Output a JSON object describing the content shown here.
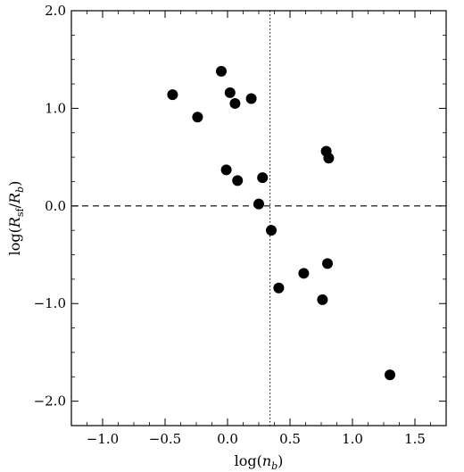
{
  "chart_data": {
    "type": "scatter",
    "xlabel": "log(n_b)",
    "ylabel": "log(R_sf/R_b)",
    "xlim": [
      -1.25,
      1.75
    ],
    "ylim": [
      -2.25,
      2.0
    ],
    "xticks": [
      -1.0,
      -0.5,
      0.0,
      0.5,
      1.0,
      1.5
    ],
    "xtick_labels": [
      "−1.0",
      "−0.5",
      "0.0",
      "0.5",
      "1.0",
      "1.5"
    ],
    "yticks": [
      -2.0,
      -1.0,
      0.0,
      1.0,
      2.0
    ],
    "ytick_labels": [
      "−2.0",
      "−1.0",
      "0.0",
      "1.0",
      "2.0"
    ],
    "reference_lines": {
      "horizontal_dashed_y": 0.0,
      "vertical_dotted_x": 0.34
    },
    "series": [
      {
        "color": "#000000",
        "points": [
          [
            -0.44,
            1.14
          ],
          [
            -0.24,
            0.91
          ],
          [
            -0.05,
            1.38
          ],
          [
            0.02,
            1.16
          ],
          [
            0.06,
            1.05
          ],
          [
            0.19,
            1.1
          ],
          [
            -0.01,
            0.37
          ],
          [
            0.08,
            0.26
          ],
          [
            0.28,
            0.29
          ],
          [
            0.25,
            0.02
          ],
          [
            0.35,
            -0.25
          ],
          [
            0.41,
            -0.84
          ],
          [
            0.61,
            -0.69
          ],
          [
            0.79,
            0.56
          ],
          [
            0.81,
            0.49
          ],
          [
            0.8,
            -0.59
          ],
          [
            0.76,
            -0.96
          ],
          [
            1.3,
            -1.73
          ]
        ]
      }
    ]
  }
}
